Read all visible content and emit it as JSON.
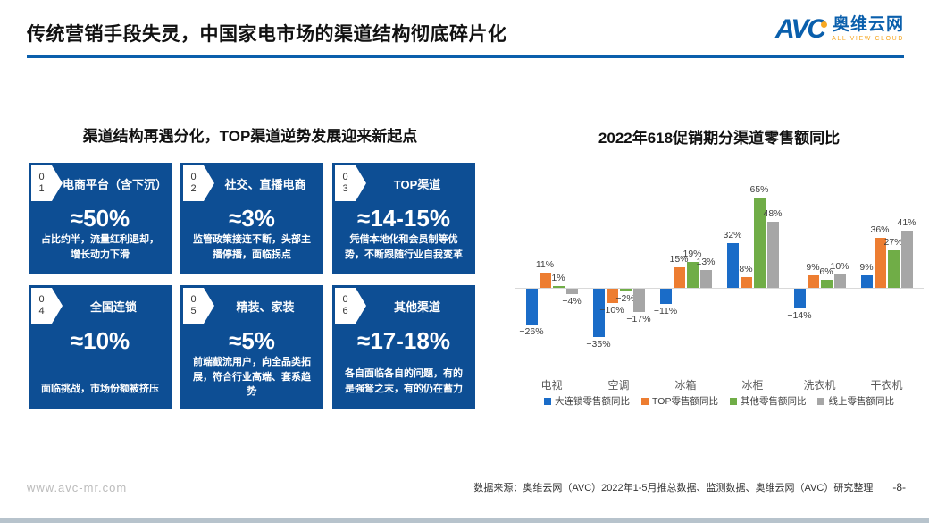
{
  "header": {
    "title": "传统营销手段失灵，中国家电市场的渠道结构彻底碎片化",
    "logo": {
      "avc": "AVC",
      "cn": "奥维云网",
      "en": "ALL VIEW CLOUD"
    }
  },
  "left": {
    "section_title": "渠道结构再遇分化，TOP渠道逆势发展迎来新起点",
    "boxes": [
      {
        "num1": "0",
        "num2": "1",
        "title": "电商平台（含下沉）",
        "value": "≈50%",
        "desc": "占比约半，流量红利退却，增长动力下滑"
      },
      {
        "num1": "0",
        "num2": "2",
        "title": "社交、直播电商",
        "value": "≈3%",
        "desc": "监管政策接连不断，头部主播停播，面临拐点"
      },
      {
        "num1": "0",
        "num2": "3",
        "title": "TOP渠道",
        "value": "≈14-15%",
        "desc": "凭借本地化和会员制等优势，不断跟随行业自我变革"
      },
      {
        "num1": "0",
        "num2": "4",
        "title": "全国连锁",
        "value": "≈10%",
        "desc": "面临挑战，市场份额被挤压"
      },
      {
        "num1": "0",
        "num2": "5",
        "title": "精装、家装",
        "value": "≈5%",
        "desc": "前端截流用户，向全品类拓展，符合行业高端、套系趋势"
      },
      {
        "num1": "0",
        "num2": "6",
        "title": "其他渠道",
        "value": "≈17-18%",
        "desc": "各自面临各自的问题，有的是强弩之末，有的仍在蓄力"
      }
    ]
  },
  "chart_data": {
    "type": "bar",
    "title": "2022年618促销期分渠道零售额同比",
    "categories": [
      "电视",
      "空调",
      "冰箱",
      "冰柜",
      "洗衣机",
      "干衣机"
    ],
    "series": [
      {
        "name": "大连锁零售额同比",
        "color": "#1A6CC8",
        "values": [
          -26,
          -35,
          -11,
          32,
          -14,
          9
        ]
      },
      {
        "name": "TOP零售额同比",
        "color": "#ED7D31",
        "values": [
          11,
          -10,
          15,
          8,
          9,
          36
        ]
      },
      {
        "name": "其他零售额同比",
        "color": "#70AD47",
        "values": [
          1,
          -2,
          19,
          65,
          6,
          27
        ]
      },
      {
        "name": "线上零售额同比",
        "color": "#A6A6A6",
        "values": [
          -4,
          -17,
          13,
          48,
          10,
          41
        ]
      }
    ],
    "unit": "%",
    "ylim": [
      -35,
      65
    ],
    "grid": false,
    "legend_position": "bottom"
  },
  "footer": {
    "website": "www.avc-mr.com",
    "source": "数据来源：奥维云网（AVC）2022年1-5月推总数据、监测数据、奥维云网（AVC）研究整理",
    "page": "-8-"
  }
}
